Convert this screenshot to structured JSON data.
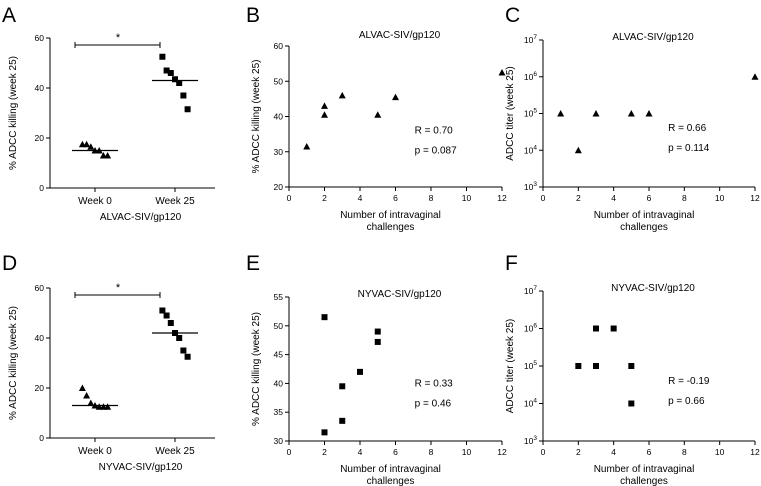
{
  "chart_data": [
    {
      "panel": "A",
      "type": "scatter",
      "title": "",
      "xlabel": "ALVAC-SIV/gp120",
      "ylabel": "% ADCC killing (week 25)",
      "ylim": [
        0,
        60
      ],
      "yticks": [
        "0",
        "20",
        "40",
        "60"
      ],
      "categories": [
        "Week 0",
        "Week 25"
      ],
      "groups": [
        {
          "name": "Week 0",
          "marker": "triangle",
          "values": [
            17.5,
            17.5,
            16.5,
            15,
            15,
            13,
            13
          ],
          "median": 15
        },
        {
          "name": "Week 25",
          "marker": "square",
          "values": [
            52.5,
            47,
            46,
            43.5,
            42,
            37,
            31.5
          ],
          "median": 43
        }
      ],
      "significance": "*"
    },
    {
      "panel": "B",
      "type": "scatter",
      "title": "ALVAC-SIV/gp120",
      "xlabel": "Number of intravaginal challenges",
      "ylabel": "% ADCC killing (week 25)",
      "xlim": [
        0,
        12
      ],
      "ylim": [
        20,
        60
      ],
      "xticks": [
        "0",
        "2",
        "4",
        "6",
        "8",
        "10",
        "12"
      ],
      "yticks": [
        "20",
        "30",
        "40",
        "50",
        "60"
      ],
      "marker": "triangle",
      "x": [
        1,
        2,
        2,
        3,
        5,
        6,
        12
      ],
      "y": [
        31.5,
        43,
        40.5,
        46,
        40.5,
        45.5,
        52.5
      ],
      "stats": [
        "R = 0.70",
        "p = 0.087"
      ]
    },
    {
      "panel": "C",
      "type": "scatter",
      "yscale": "log",
      "title": "ALVAC-SIV/gp120",
      "xlabel": "Number of intravaginal challenges",
      "ylabel": "ADCC titer (week 25)",
      "xlim": [
        0,
        12
      ],
      "ylim": [
        1000,
        10000000
      ],
      "xticks": [
        "0",
        "2",
        "4",
        "6",
        "8",
        "10",
        "12"
      ],
      "yticks": [
        {
          "base": "10",
          "exp": "3"
        },
        {
          "base": "10",
          "exp": "4"
        },
        {
          "base": "10",
          "exp": "5"
        },
        {
          "base": "10",
          "exp": "6"
        },
        {
          "base": "10",
          "exp": "7"
        }
      ],
      "marker": "triangle",
      "x": [
        1,
        2,
        3,
        5,
        6,
        12
      ],
      "y": [
        100000,
        10000,
        100000,
        100000,
        100000,
        1000000
      ],
      "stats": [
        "R = 0.66",
        "p = 0.114"
      ]
    },
    {
      "panel": "D",
      "type": "scatter",
      "title": "",
      "xlabel": "NYVAC-SIV/gp120",
      "ylabel": "% ADCC killing (week 25)",
      "ylim": [
        0,
        60
      ],
      "yticks": [
        "0",
        "20",
        "40",
        "60"
      ],
      "categories": [
        "Week 0",
        "Week 25"
      ],
      "groups": [
        {
          "name": "Week 0",
          "marker": "triangle",
          "values": [
            20,
            17,
            14,
            13,
            12.5,
            12.5,
            12.5
          ],
          "median": 13
        },
        {
          "name": "Week 25",
          "marker": "square",
          "values": [
            51,
            49,
            46,
            42,
            40,
            35,
            32.5
          ],
          "median": 42
        }
      ],
      "significance": "*"
    },
    {
      "panel": "E",
      "type": "scatter",
      "title": "NYVAC-SIV/gp120",
      "xlabel": "Number of intravaginal challenges",
      "ylabel": "% ADCC killing (week 25)",
      "xlim": [
        0,
        12
      ],
      "ylim": [
        30,
        55
      ],
      "xticks": [
        "0",
        "2",
        "4",
        "6",
        "8",
        "10",
        "12"
      ],
      "yticks": [
        "30",
        "35",
        "40",
        "45",
        "50",
        "55"
      ],
      "marker": "square",
      "x": [
        2,
        2,
        3,
        3,
        4,
        5,
        5
      ],
      "y": [
        51.5,
        31.5,
        39.5,
        33.5,
        42,
        49,
        47.2
      ],
      "stats": [
        "R = 0.33",
        "p = 0.46"
      ]
    },
    {
      "panel": "F",
      "type": "scatter",
      "yscale": "log",
      "title": "NYVAC-SIV/gp120",
      "xlabel": "Number of intravaginal challenges",
      "ylabel": "ADCC titer (week 25)",
      "xlim": [
        0,
        12
      ],
      "ylim": [
        1000,
        10000000
      ],
      "xticks": [
        "0",
        "2",
        "4",
        "6",
        "8",
        "10",
        "12"
      ],
      "yticks": [
        {
          "base": "10",
          "exp": "3"
        },
        {
          "base": "10",
          "exp": "4"
        },
        {
          "base": "10",
          "exp": "5"
        },
        {
          "base": "10",
          "exp": "6"
        },
        {
          "base": "10",
          "exp": "7"
        }
      ],
      "marker": "square",
      "x": [
        2,
        3,
        3,
        4,
        5,
        5
      ],
      "y": [
        100000,
        1000000,
        100000,
        1000000,
        100000,
        10000
      ],
      "stats": [
        "R = -0.19",
        "p = 0.66"
      ]
    }
  ]
}
